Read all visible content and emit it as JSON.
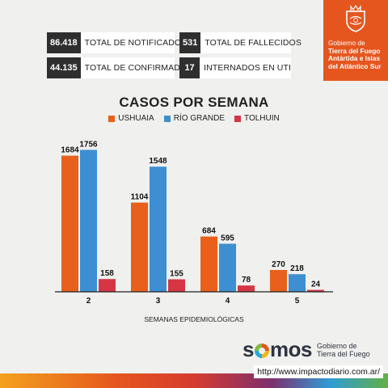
{
  "stats": [
    {
      "value": "86.418",
      "label": "TOTAL DE NOTIFICADOS"
    },
    {
      "value": "531",
      "label": "TOTAL DE FALLECIDOS"
    },
    {
      "value": "44.135",
      "label": "TOTAL DE CONFIRMADOS"
    },
    {
      "value": "17",
      "label": "INTERNADOS EN UTI"
    }
  ],
  "government": {
    "line1": "Gobierno de",
    "line2": "Tierra del Fuego",
    "line3": "Antártida e Islas",
    "line4": "del Atlántico Sur"
  },
  "footer": {
    "brand": "somos",
    "brand_pre": "s",
    "brand_post": "mos",
    "sub1": "Gobierno de",
    "sub2": "Tierra del Fuego",
    "url": "http://www.impactodiario.com.ar/"
  },
  "colors": {
    "ushuaia": "#e8601c",
    "rio_grande": "#3d8fd1",
    "tolhuin": "#d63644",
    "accent": "#e5561f"
  },
  "chart_data": {
    "type": "bar",
    "title": "CASOS POR SEMANA",
    "xlabel": "SEMANAS EPIDEMIOLÓGICAS",
    "ylabel": "",
    "categories": [
      "2",
      "3",
      "4",
      "5"
    ],
    "series": [
      {
        "name": "USHUAIA",
        "values": [
          1684,
          1104,
          684,
          270
        ]
      },
      {
        "name": "RÍO GRANDE",
        "values": [
          1756,
          1548,
          595,
          218
        ]
      },
      {
        "name": "TOLHUIN",
        "values": [
          158,
          155,
          78,
          24
        ]
      }
    ],
    "ylim": [
      0,
      1800
    ],
    "legend": "top-center",
    "grid": false
  }
}
